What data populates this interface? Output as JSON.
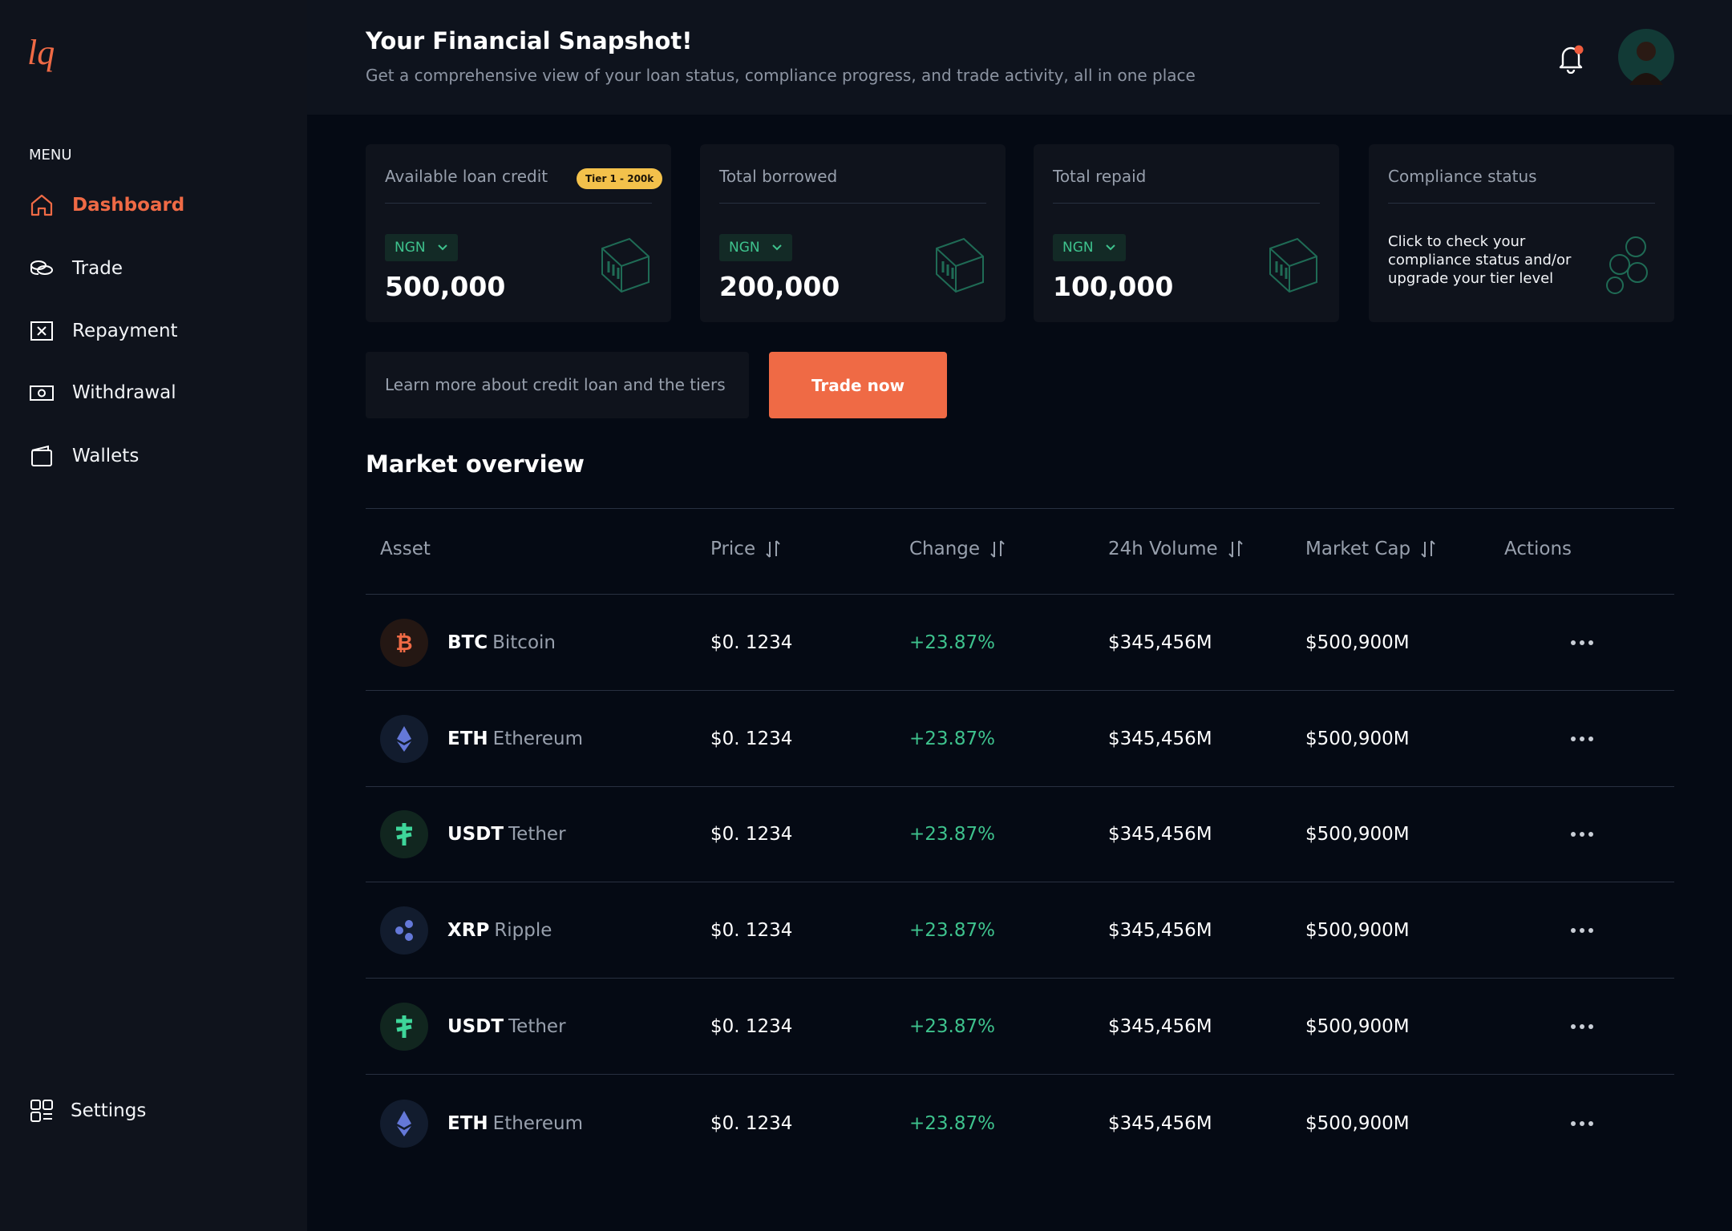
{
  "brand": "lq",
  "sidebar": {
    "menu_label": "MENU",
    "items": [
      "Dashboard",
      "Trade",
      "Repayment",
      "Withdrawal",
      "Wallets"
    ],
    "settings": "Settings"
  },
  "header": {
    "title": "Your Financial Snapshot!",
    "subtitle": "Get a comprehensive view of your loan status, compliance progress, and trade activity, all in one place"
  },
  "cards": [
    {
      "label": "Available loan credit",
      "badge": "Tier 1 - 200k",
      "currency": "NGN",
      "value": "500,000"
    },
    {
      "label": "Total borrowed",
      "currency": "NGN",
      "value": "200,000"
    },
    {
      "label": "Total repaid",
      "currency": "NGN",
      "value": "100,000"
    },
    {
      "label": "Compliance status",
      "description": "Click to check your compliance status and/or upgrade your tier level"
    }
  ],
  "learn_more": "Learn more about credit loan and the tiers",
  "trade_button": "Trade now",
  "market": {
    "title": "Market overview",
    "columns": [
      "Asset",
      "Price",
      "Change",
      "24h Volume",
      "Market Cap",
      "Actions"
    ],
    "rows": [
      [
        "BTC",
        "Bitcoin",
        "$0. 1234",
        "+23.87%",
        "$345,456M",
        "$500,900M"
      ],
      [
        "ETH",
        "Ethereum",
        "$0. 1234",
        "+23.87%",
        "$345,456M",
        "$500,900M"
      ],
      [
        "USDT",
        "Tether",
        "$0. 1234",
        "+23.87%",
        "$345,456M",
        "$500,900M"
      ],
      [
        "XRP",
        "Ripple",
        "$0. 1234",
        "+23.87%",
        "$345,456M",
        "$500,900M"
      ],
      [
        "USDT",
        "Tether",
        "$0. 1234",
        "+23.87%",
        "$345,456M",
        "$500,900M"
      ],
      [
        "ETH",
        "Ethereum",
        "$0. 1234",
        "+23.87%",
        "$345,456M",
        "$500,900M"
      ]
    ]
  }
}
